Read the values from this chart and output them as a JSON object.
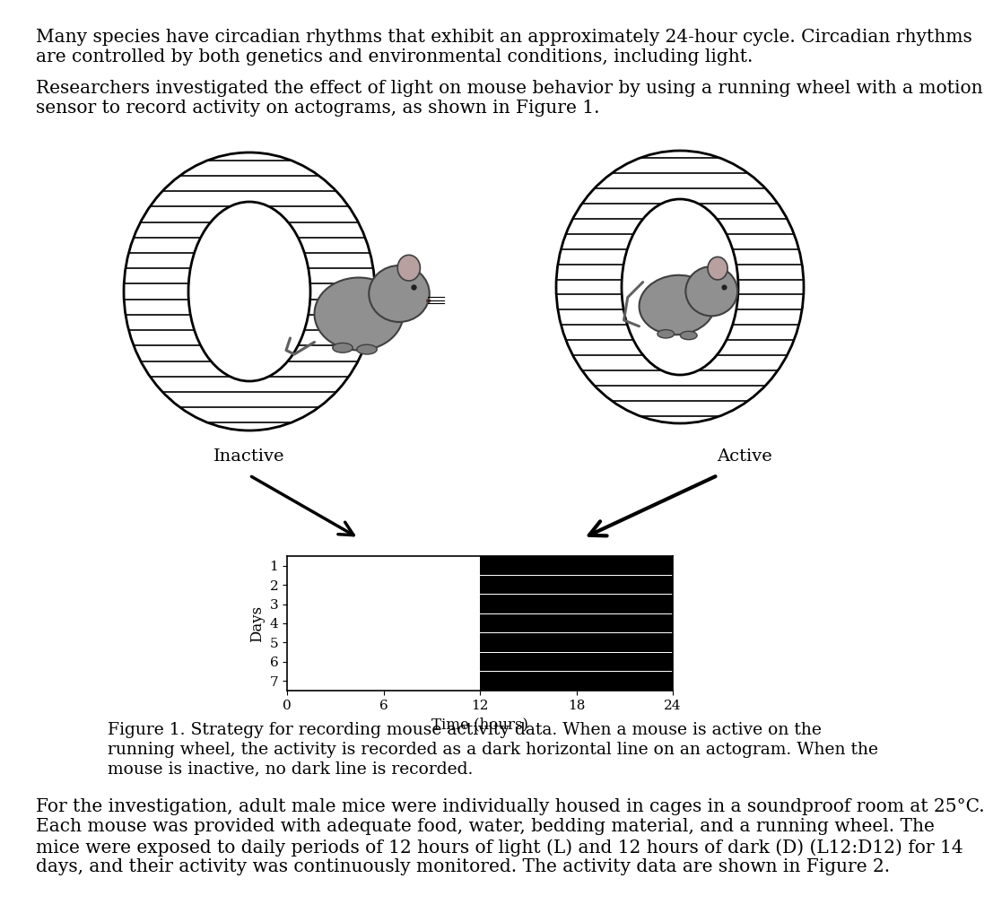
{
  "paragraph1_lines": [
    "Many species have circadian rhythms that exhibit an approximately 24-hour cycle. Circadian rhythms",
    "are controlled by both genetics and environmental conditions, including light."
  ],
  "paragraph2_lines": [
    "Researchers investigated the effect of light on mouse behavior by using a running wheel with a motion",
    "sensor to record activity on actograms, as shown in Figure 1."
  ],
  "paragraph3_lines": [
    "For the investigation, adult male mice were individually housed in cages in a soundproof room at 25°C.",
    "Each mouse was provided with adequate food, water, bedding material, and a running wheel. The",
    "mice were exposed to daily periods of 12 hours of light (L) and 12 hours of dark (D) (L12:D12) for 14",
    "days, and their activity was continuously monitored. The activity data are shown in Figure 2."
  ],
  "figure_caption_lines": [
    "Figure 1. Strategy for recording mouse activity data. When a mouse is active on the",
    "running wheel, the activity is recorded as a dark horizontal line on an actogram. When the",
    "mouse is inactive, no dark line is recorded."
  ],
  "inactive_label": "Inactive",
  "active_label": "Active",
  "xlabel": "Time (hours)",
  "ylabel": "Days",
  "xticks": [
    0,
    6,
    12,
    18,
    24
  ],
  "yticks": [
    1,
    2,
    3,
    4,
    5,
    6,
    7
  ],
  "num_days": 7,
  "active_start": 12,
  "active_end": 24,
  "background_color": "#ffffff",
  "bar_color": "#000000",
  "text_font_size": 14.5,
  "caption_font_size": 13.5,
  "axis_font_size": 12,
  "tick_font_size": 11,
  "label_font_size": 14,
  "font_family": "DejaVu Serif"
}
